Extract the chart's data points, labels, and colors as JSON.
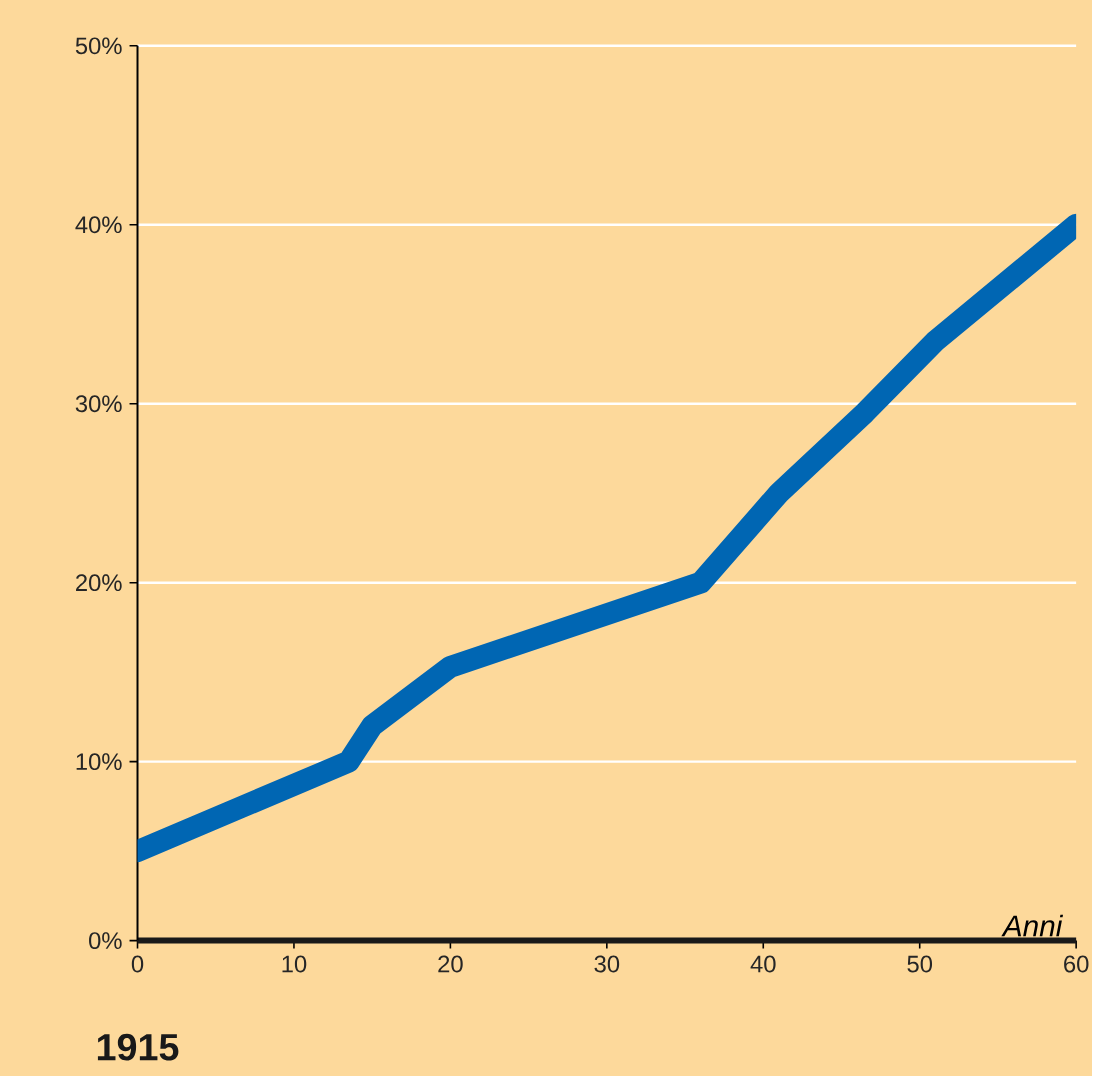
{
  "chart_data": {
    "type": "line",
    "xlabel": "Anni",
    "annotations": [
      "1915"
    ],
    "x": [
      0,
      13.5,
      15,
      20,
      36,
      41,
      46.5,
      51,
      60
    ],
    "series": [
      {
        "color": "#0066b3",
        "values": [
          5,
          10,
          12,
          15.3,
          20,
          25,
          29.5,
          33.5,
          40
        ]
      }
    ],
    "xlim": [
      0,
      60
    ],
    "xticks": [
      0,
      10,
      20,
      30,
      40,
      50,
      60
    ],
    "ylim": [
      0,
      50
    ],
    "yticks": [
      {
        "value": 0,
        "label": "0%"
      },
      {
        "value": 10,
        "label": "10%"
      },
      {
        "value": 20,
        "label": "20%"
      },
      {
        "value": 30,
        "label": "30%"
      },
      {
        "value": 40,
        "label": "40%"
      },
      {
        "value": 50,
        "label": "50%"
      }
    ],
    "grid": "y",
    "line_style": "solid"
  }
}
